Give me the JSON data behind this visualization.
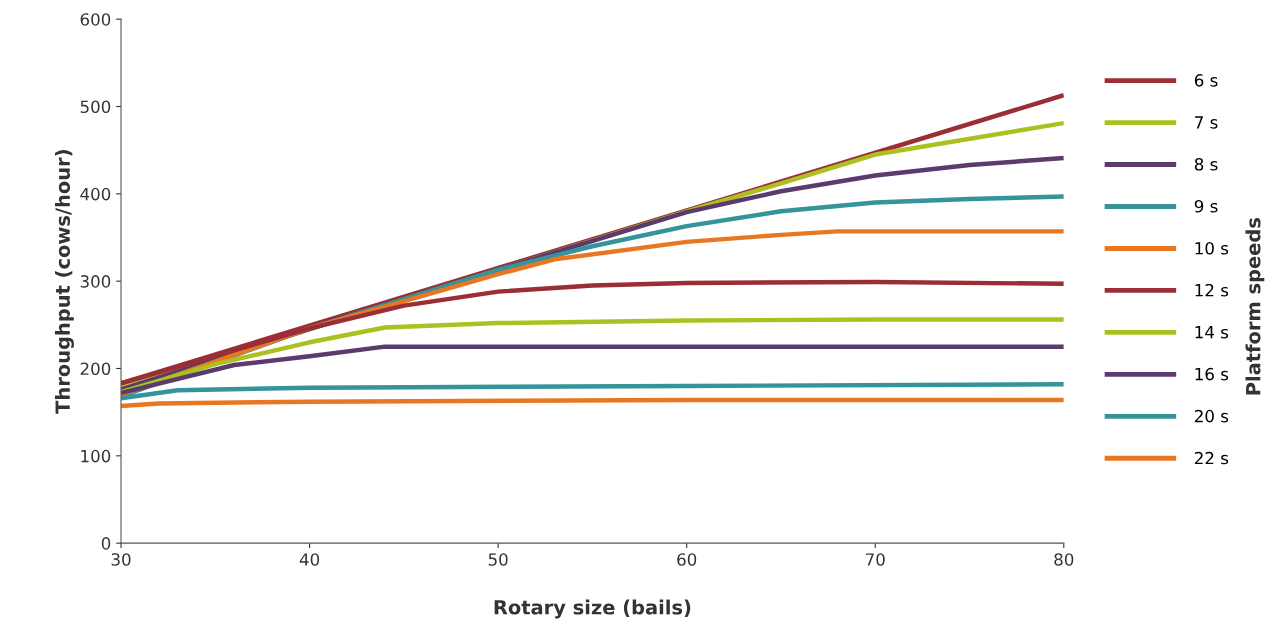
{
  "chart_data": {
    "type": "line",
    "xlabel": "Rotary size (bails)",
    "ylabel": "Throughput (cows/hour)",
    "legend_title": "Platform speeds",
    "xlim": [
      30,
      80
    ],
    "xticks": [
      30,
      40,
      50,
      60,
      70,
      80
    ],
    "ylim": [
      0,
      600
    ],
    "yticks": [
      0,
      100,
      200,
      300,
      400,
      500,
      600
    ],
    "grid": false,
    "legend": "right",
    "marker": "none",
    "line_style": "solid",
    "series": [
      {
        "name": "6 s",
        "color": "#9b2d36",
        "x": [
          30,
          80
        ],
        "values": [
          183,
          513
        ]
      },
      {
        "name": "7 s",
        "color": "#adc021",
        "x": [
          30,
          40,
          50,
          60,
          65,
          70,
          80
        ],
        "values": [
          178,
          245,
          313,
          380,
          412,
          445,
          481
        ]
      },
      {
        "name": "8 s",
        "color": "#5b3a6e",
        "x": [
          30,
          40,
          50,
          60,
          65,
          70,
          75,
          80
        ],
        "values": [
          176,
          245,
          313,
          379,
          403,
          421,
          433,
          441
        ]
      },
      {
        "name": "9 s",
        "color": "#35939a",
        "x": [
          30,
          40,
          50,
          55,
          60,
          65,
          70,
          75,
          80
        ],
        "values": [
          168,
          246,
          313,
          340,
          363,
          380,
          390,
          394,
          397
        ]
      },
      {
        "name": "10 s",
        "color": "#e87722",
        "x": [
          30,
          40,
          50,
          53,
          60,
          65,
          68,
          80
        ],
        "values": [
          170,
          246,
          308,
          325,
          345,
          353,
          357,
          357
        ]
      },
      {
        "name": "12 s",
        "color": "#9b2d36",
        "x": [
          30,
          40,
          45,
          50,
          55,
          60,
          70,
          80
        ],
        "values": [
          183,
          246,
          272,
          288,
          295,
          298,
          299,
          297
        ]
      },
      {
        "name": "14 s",
        "color": "#adc021",
        "x": [
          30,
          35,
          40,
          44,
          50,
          60,
          70,
          80
        ],
        "values": [
          173,
          205,
          230,
          247,
          252,
          255,
          256,
          256
        ]
      },
      {
        "name": "16 s",
        "color": "#5b3a6e",
        "x": [
          30,
          36,
          40,
          44,
          80
        ],
        "values": [
          172,
          204,
          214,
          225,
          225
        ]
      },
      {
        "name": "20 s",
        "color": "#35939a",
        "x": [
          30,
          33,
          40,
          60,
          80
        ],
        "values": [
          166,
          175,
          178,
          180,
          182
        ]
      },
      {
        "name": "22 s",
        "color": "#e87722",
        "x": [
          30,
          32,
          40,
          60,
          80
        ],
        "values": [
          157,
          160,
          162,
          164,
          164
        ]
      }
    ]
  }
}
